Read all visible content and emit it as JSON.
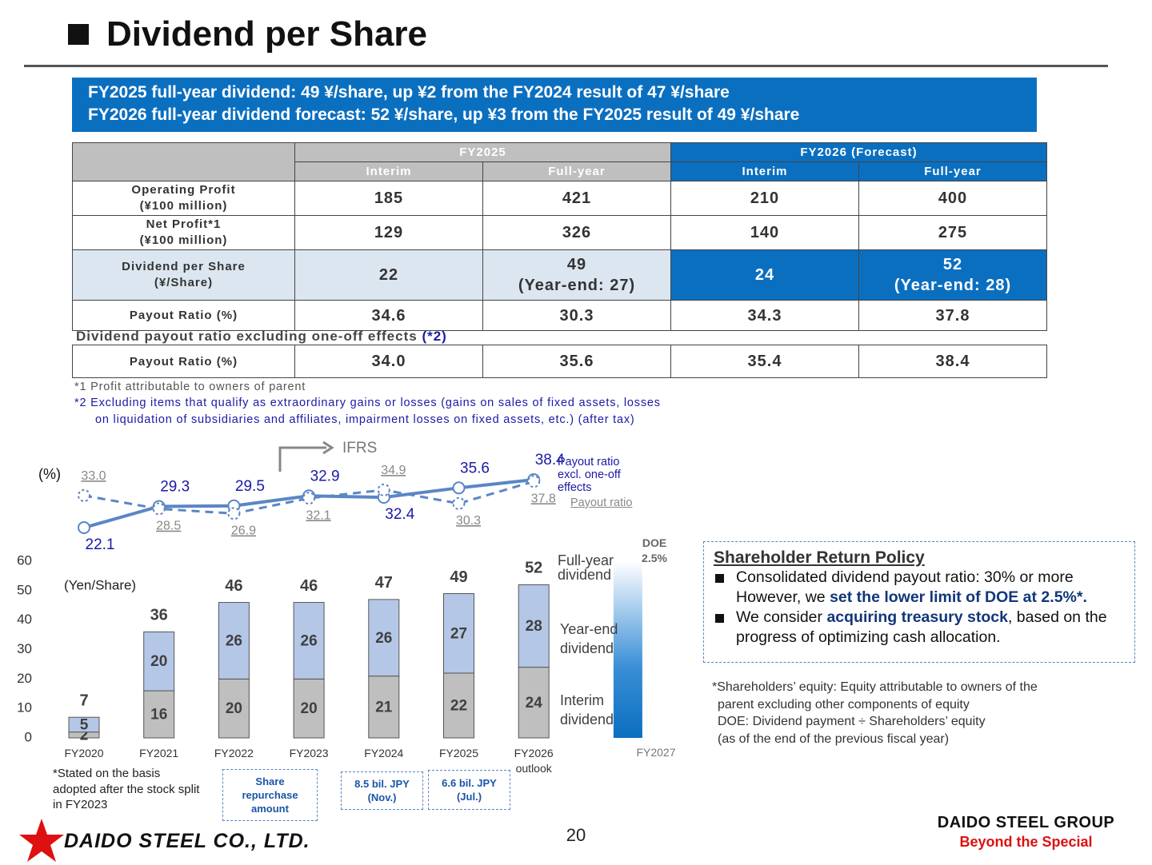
{
  "title": "Dividend per Share",
  "summary": [
    "FY2025 full-year dividend: 49 ¥/share, up ¥2 from the FY2024 result of 47 ¥/share",
    "FY2026 full-year dividend forecast: 52 ¥/share, up ¥3 from the FY2025 result of 49 ¥/share"
  ],
  "table": {
    "groups": [
      "FY2025",
      "FY2026 (Forecast)"
    ],
    "subheaders": [
      "Interim",
      "Full-year",
      "Interim",
      "Full-year"
    ],
    "rows": [
      {
        "label": "Operating Profit\n(¥100 million)",
        "cells": [
          "185",
          "421",
          "210",
          "400"
        ]
      },
      {
        "label": "Net Profit*1\n(¥100 million)",
        "cells": [
          "129",
          "326",
          "140",
          "275"
        ]
      },
      {
        "label": "Dividend per Share\n(¥/Share)",
        "cells": [
          "22",
          "49\n(Year-end: 27)",
          "24",
          "52\n(Year-end: 28)"
        ]
      },
      {
        "label": "Payout Ratio (%)",
        "cells": [
          "34.6",
          "30.3",
          "34.3",
          "37.8"
        ]
      }
    ],
    "excl_title": "Dividend payout ratio excluding one-off effects",
    "excl_ref": "(*2)",
    "excl_row": {
      "label": "Payout Ratio (%)",
      "cells": [
        "34.0",
        "35.6",
        "35.4",
        "38.4"
      ]
    }
  },
  "notes": [
    "*1 Profit attributable to owners of parent",
    "*2 Excluding items that qualify as extraordinary gains or losses (gains on sales of fixed assets, losses\non liquidation of subsidiaries and affiliates, impairment losses on fixed assets, etc.) (after tax)"
  ],
  "chart_data": [
    {
      "type": "line",
      "y_label": "(%)",
      "annotation": "IFRS",
      "series": [
        {
          "name": "Payout ratio excl. one-off effects",
          "color": "#5a86c5",
          "values": [
            22.1,
            29.3,
            29.5,
            32.9,
            32.4,
            35.6,
            38.4
          ]
        },
        {
          "name": "Payout ratio",
          "color": "#5a86c5",
          "dashed": true,
          "values": [
            33.0,
            28.5,
            26.9,
            32.1,
            34.9,
            30.3,
            37.8
          ],
          "value_labels": [
            "33.0",
            "28.5",
            "26.9",
            "32.1",
            "34.9",
            "30.3",
            "37.8"
          ]
        }
      ]
    },
    {
      "type": "bar",
      "stacked": true,
      "y_label": "(Yen/Share)",
      "categories": [
        "FY2020",
        "FY2021",
        "FY2022",
        "FY2023",
        "FY2024",
        "FY2025",
        "FY2026 outlook"
      ],
      "series": [
        {
          "name": "Interim dividend",
          "color": "#bfbfbf",
          "values": [
            2,
            16,
            20,
            20,
            21,
            22,
            24
          ]
        },
        {
          "name": "Year-end dividend",
          "color": "#b4c7e7",
          "values": [
            5,
            20,
            26,
            26,
            26,
            27,
            28
          ]
        }
      ],
      "totals": {
        "name": "Full-year dividend",
        "values": [
          7,
          36,
          46,
          46,
          47,
          49,
          52
        ]
      },
      "ylim": [
        0,
        60
      ],
      "yticks": [
        0,
        10,
        20,
        30,
        40,
        50,
        60
      ],
      "doe": {
        "label": "DOE 2.5%",
        "category": "FY2027"
      }
    }
  ],
  "chart_note": "*Stated on the basis adopted after the stock split in FY2023",
  "repurchase": {
    "label": "Share repurchase amount",
    "items": [
      "8.5 bil. JPY (Nov.)",
      "6.6 bil. JPY (Jul.)"
    ]
  },
  "policy": {
    "title": "Shareholder Return Policy",
    "items": [
      [
        "Consolidated dividend payout ratio: 30% or more\nHowever, we ",
        "set the lower limit of DOE at 2.5%*."
      ],
      [
        "We consider ",
        "acquiring treasury stock",
        ", based on the progress of optimizing cash allocation."
      ]
    ]
  },
  "policy_note": "*Shareholders’ equity: Equity attributable to owners of the\nparent excluding other components of equity\nDOE: Dividend payment ÷ Shareholders’ equity\n(as of the end of the previous fiscal year)",
  "page": "20",
  "company": "DAIDO STEEL CO., LTD.",
  "group": "DAIDO STEEL GROUP",
  "slogan": "Beyond the Special"
}
